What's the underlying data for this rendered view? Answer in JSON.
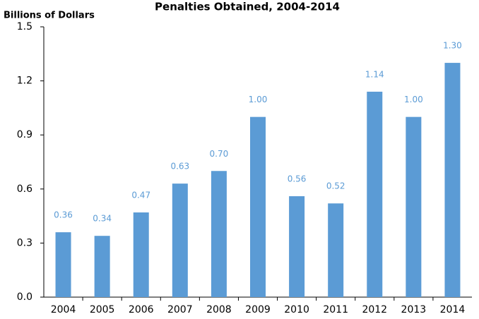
{
  "chart_data": {
    "type": "bar",
    "title": "Penalties Obtained, 2004-2014",
    "y_label": "Billions of Dollars",
    "categories": [
      "2004",
      "2005",
      "2006",
      "2007",
      "2008",
      "2009",
      "2010",
      "2011",
      "2012",
      "2013",
      "2014"
    ],
    "values": [
      0.36,
      0.34,
      0.47,
      0.63,
      0.7,
      1.0,
      0.56,
      0.52,
      1.14,
      1.0,
      1.3
    ],
    "value_labels": [
      "0.36",
      "0.34",
      "0.47",
      "0.63",
      "0.70",
      "1.00",
      "0.56",
      "0.52",
      "1.14",
      "1.00",
      "1.30"
    ],
    "color": "#5b9bd5",
    "ylim": [
      0,
      1.5
    ],
    "yticks": [
      {
        "value": 0,
        "label": "0.0"
      },
      0.3,
      0.6,
      0.9,
      1.2,
      1.5
    ],
    "grid": false
  }
}
